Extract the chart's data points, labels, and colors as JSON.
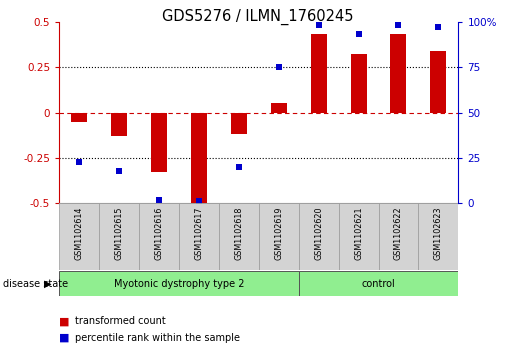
{
  "title": "GDS5276 / ILMN_1760245",
  "samples": [
    "GSM1102614",
    "GSM1102615",
    "GSM1102616",
    "GSM1102617",
    "GSM1102618",
    "GSM1102619",
    "GSM1102620",
    "GSM1102621",
    "GSM1102622",
    "GSM1102623"
  ],
  "red_values": [
    -0.05,
    -0.13,
    -0.33,
    -0.5,
    -0.12,
    0.05,
    0.43,
    0.32,
    0.43,
    0.34
  ],
  "blue_values": [
    23,
    18,
    2,
    1,
    20,
    75,
    98,
    93,
    98,
    97
  ],
  "disease_groups": [
    {
      "label": "Myotonic dystrophy type 2",
      "start": 0,
      "end": 6,
      "color": "#90EE90"
    },
    {
      "label": "control",
      "start": 6,
      "end": 10,
      "color": "#90EE90"
    }
  ],
  "ylim_left": [
    -0.5,
    0.5
  ],
  "ylim_right": [
    0,
    100
  ],
  "yticks_left": [
    -0.5,
    -0.25,
    0,
    0.25,
    0.5
  ],
  "ytick_labels_left": [
    "-0.5",
    "-0.25",
    "0",
    "0.25",
    "0.5"
  ],
  "yticks_right": [
    0,
    25,
    50,
    75,
    100
  ],
  "ytick_labels_right": [
    "0",
    "25",
    "50",
    "75",
    "100%"
  ],
  "red_color": "#CC0000",
  "blue_color": "#0000CC",
  "zero_line_color": "#CC0000",
  "bar_width": 0.4,
  "legend_red": "transformed count",
  "legend_blue": "percentile rank within the sample",
  "disease_label": "disease state",
  "label_box_color": "#D3D3D3",
  "label_box_edgecolor": "#999999",
  "n_samples": 10,
  "n_disease": 6,
  "n_control": 4
}
